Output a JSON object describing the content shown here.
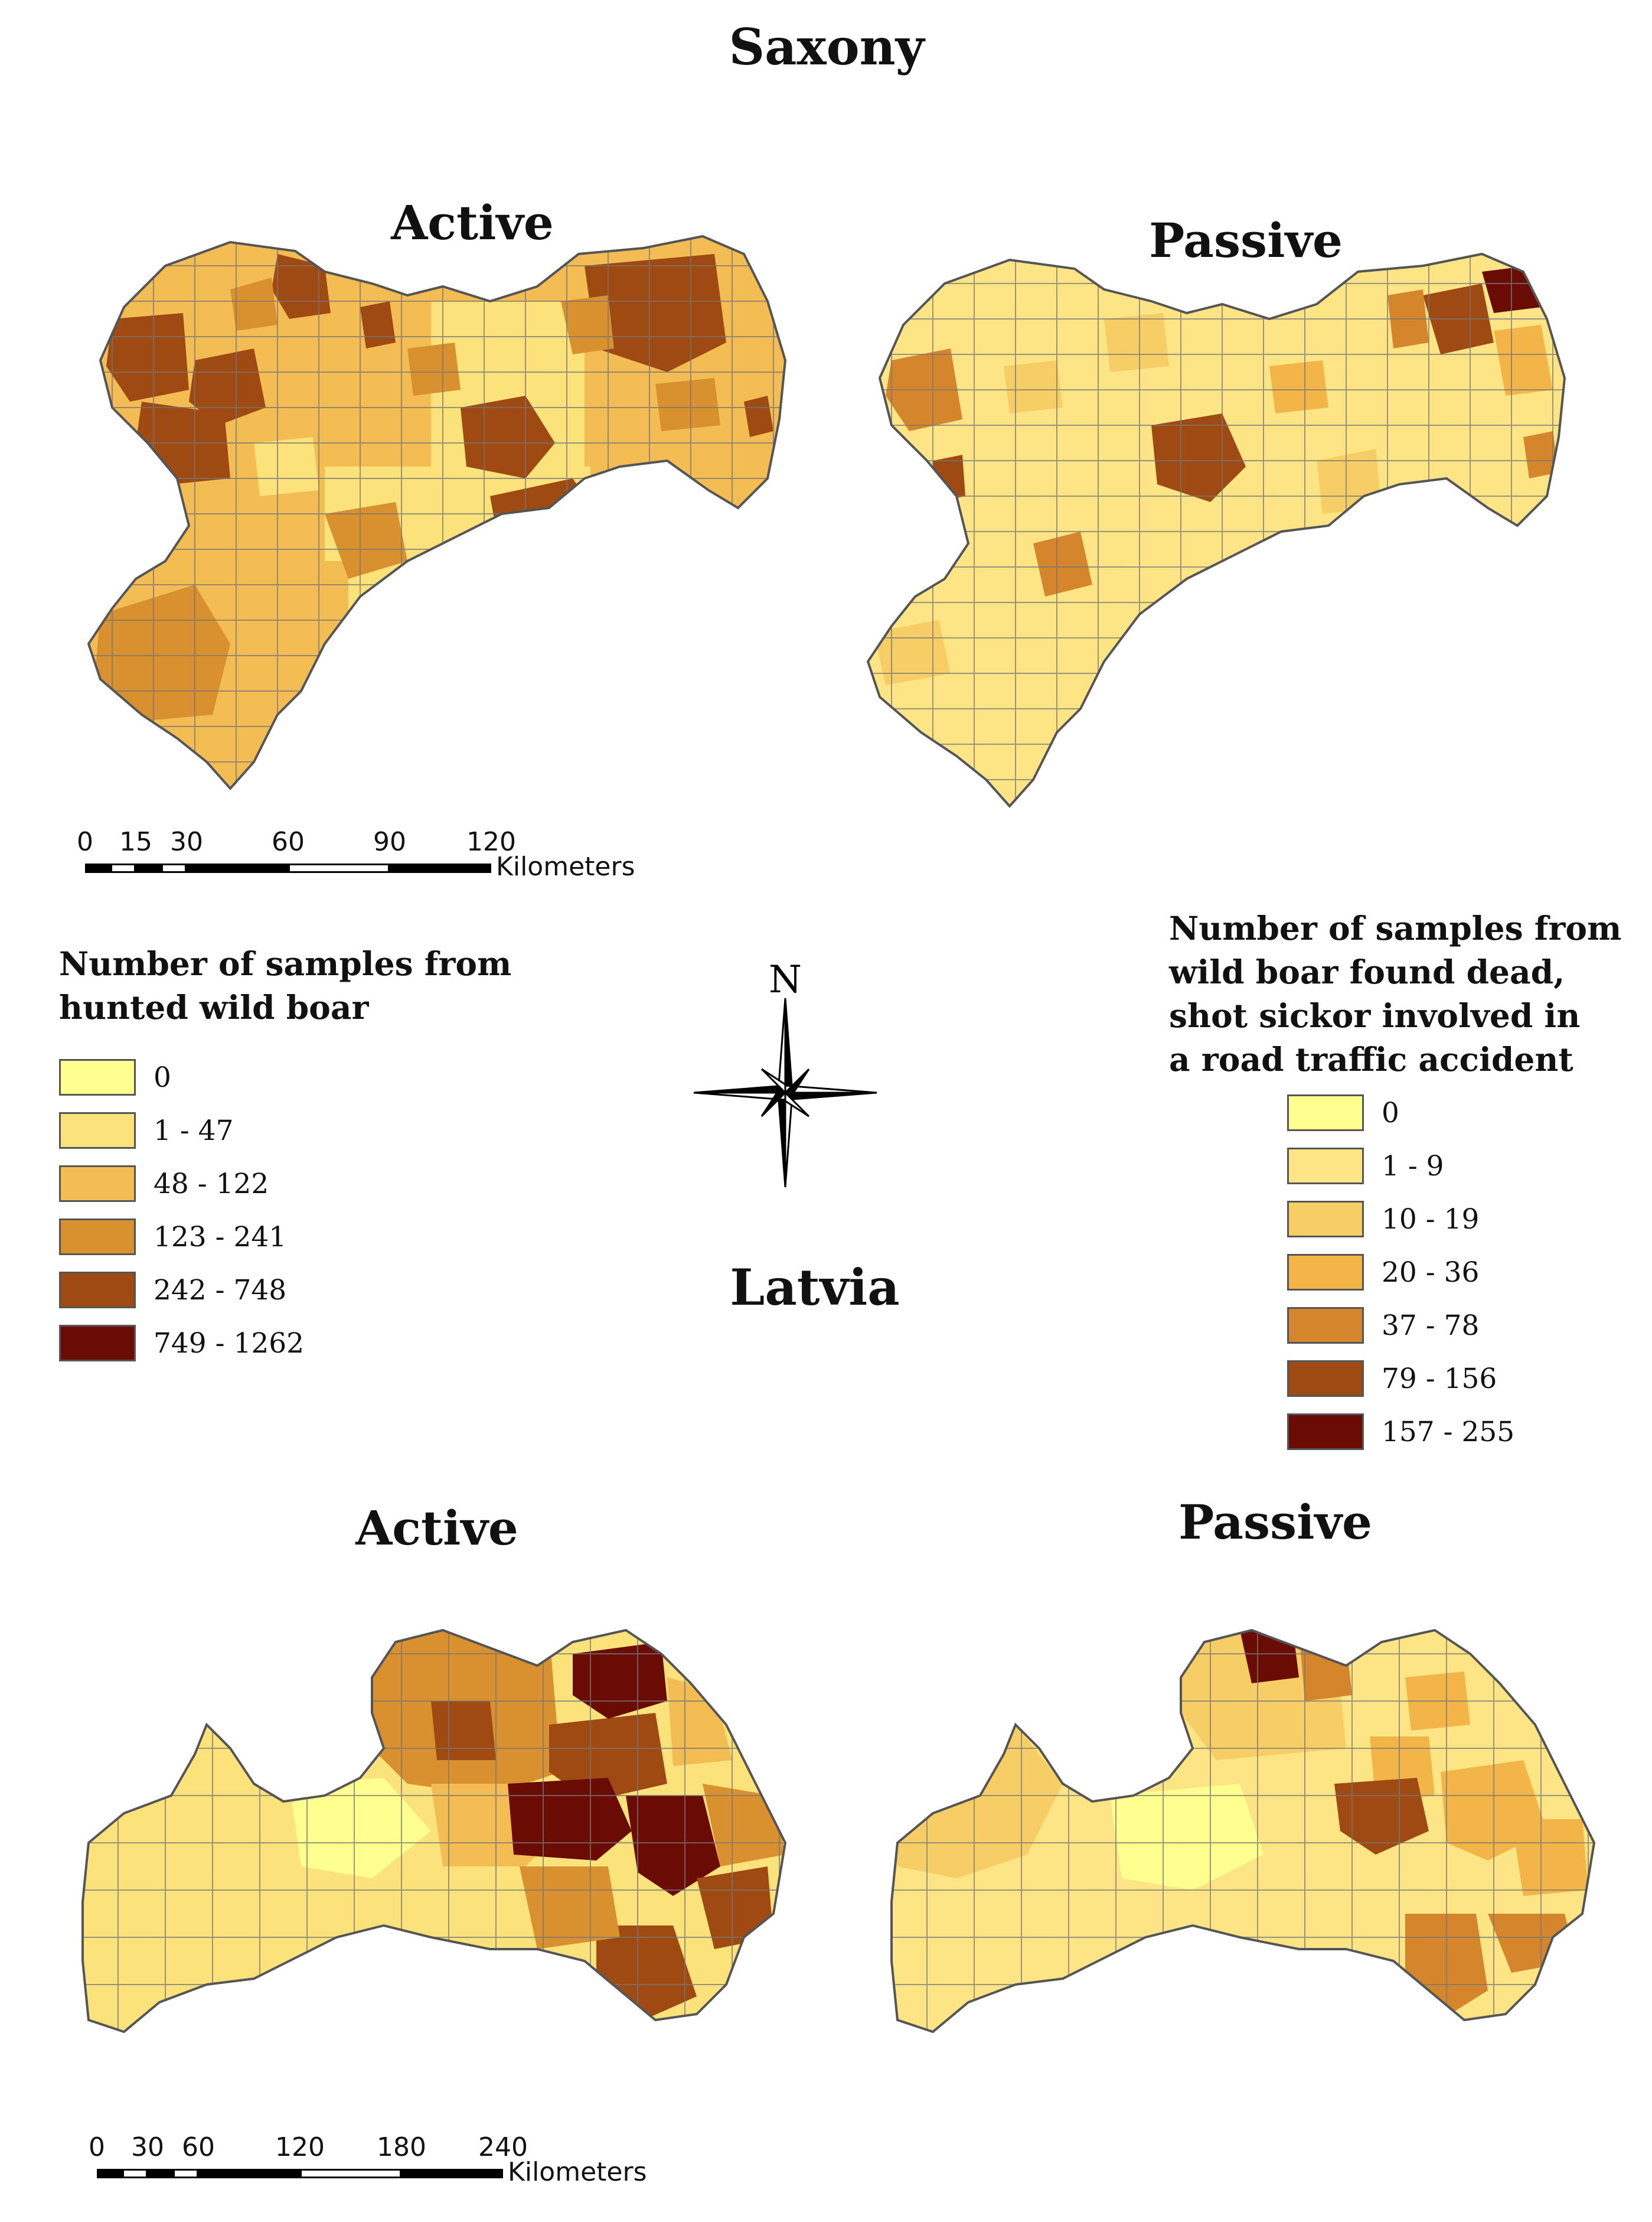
{
  "titles": {
    "saxony": "Saxony",
    "latvia": "Latvia",
    "active": "Active",
    "passive": "Passive"
  },
  "legend_active": {
    "title_lines": [
      "Number of samples from",
      "hunted wild boar"
    ],
    "classes": [
      {
        "label": "0",
        "color": "#ffff8f"
      },
      {
        "label": "1 - 47",
        "color": "#fbe27a"
      },
      {
        "label": "48 - 122",
        "color": "#f3bd54"
      },
      {
        "label": "123 - 241",
        "color": "#d9902f"
      },
      {
        "label": "242 - 748",
        "color": "#9e4a12"
      },
      {
        "label": "749 - 1262",
        "color": "#6b0c04"
      }
    ]
  },
  "legend_passive": {
    "title_lines": [
      "Number of samples from",
      "wild boar found dead,",
      "shot sickor involved in",
      "a road traffic accident"
    ],
    "classes": [
      {
        "label": "0",
        "color": "#ffff8f"
      },
      {
        "label": "1 - 9",
        "color": "#fde586"
      },
      {
        "label": "10 - 19",
        "color": "#f7cd66"
      },
      {
        "label": "20 - 36",
        "color": "#f3b548"
      },
      {
        "label": "37 - 78",
        "color": "#d5862c"
      },
      {
        "label": "79 - 156",
        "color": "#9e4a12"
      },
      {
        "label": "157 - 255",
        "color": "#6b0c04"
      }
    ]
  },
  "compass": {
    "north_label": "N"
  },
  "scale_saxony": {
    "ticks": [
      "0",
      "15",
      "30",
      "60",
      "90",
      "120"
    ],
    "unit": "Kilometers"
  },
  "scale_latvia": {
    "ticks": [
      "0",
      "30",
      "60",
      "120",
      "180",
      "240"
    ],
    "unit": "Kilometers"
  }
}
